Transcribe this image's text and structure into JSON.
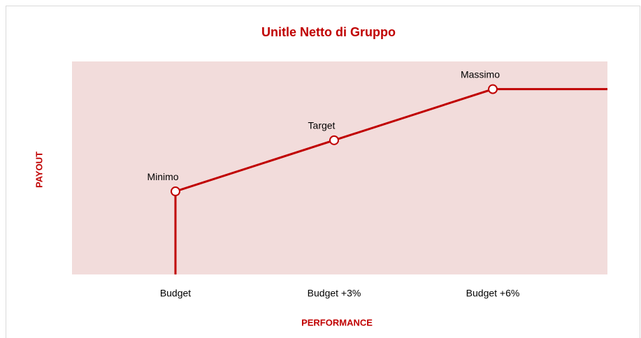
{
  "chart_data": {
    "type": "line",
    "title": "Unitle Netto di Gruppo",
    "x_label": "PERFORMANCE",
    "y_label": "PAYOUT",
    "categories": [
      "Budget",
      "Budget +3%",
      "Budget +6%"
    ],
    "values": [
      39,
      63,
      87
    ],
    "point_labels": [
      "Minimo",
      "Target",
      "Massimo"
    ],
    "color": "#c00000",
    "plot_background": "#f2dcdb",
    "ylim": [
      0,
      100
    ]
  }
}
